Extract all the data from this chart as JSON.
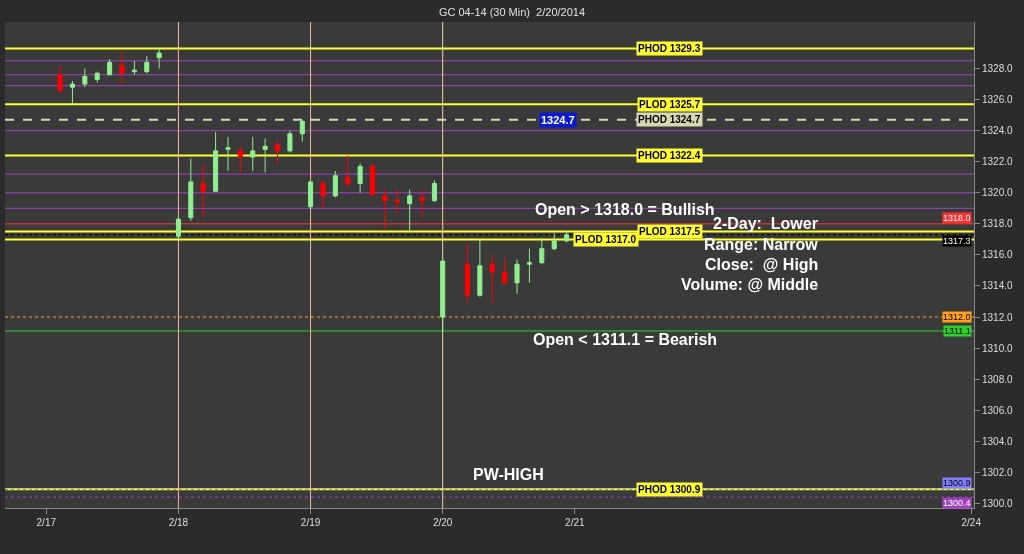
{
  "chart_data": {
    "type": "candlestick",
    "title": "GC 04-14 (30 Min)  2/20/2014",
    "x": [
      "2014-02-17T02:30",
      "2014-02-17T04:45",
      "2014-02-17T07:00",
      "2014-02-17T09:15",
      "2014-02-17T11:30",
      "2014-02-17T13:45",
      "2014-02-17T16:00",
      "2014-02-17T18:15",
      "2014-02-17T20:30",
      "2014-02-18T00:00",
      "2014-02-18T02:15",
      "2014-02-18T04:30",
      "2014-02-18T06:45",
      "2014-02-18T09:00",
      "2014-02-18T11:15",
      "2014-02-18T13:30",
      "2014-02-18T15:45",
      "2014-02-18T18:00",
      "2014-02-18T20:15",
      "2014-02-18T22:30",
      "2014-02-19T00:00",
      "2014-02-19T02:15",
      "2014-02-19T04:30",
      "2014-02-19T06:45",
      "2014-02-19T09:00",
      "2014-02-19T11:15",
      "2014-02-19T13:30",
      "2014-02-19T15:45",
      "2014-02-19T18:00",
      "2014-02-19T20:15",
      "2014-02-19T22:30",
      "2014-02-20T00:00",
      "2014-02-20T04:30",
      "2014-02-20T06:45",
      "2014-02-20T09:00",
      "2014-02-20T11:15",
      "2014-02-20T13:30",
      "2014-02-20T15:45",
      "2014-02-20T18:00",
      "2014-02-20T20:15",
      "2014-02-20T22:30"
    ],
    "ohlc": [
      [
        1327.6,
        1328.2,
        1326.4,
        1326.6
      ],
      [
        1326.8,
        1327.2,
        1325.7,
        1327.0
      ],
      [
        1327.0,
        1328.0,
        1326.8,
        1327.5
      ],
      [
        1327.3,
        1327.8,
        1327.1,
        1327.7
      ],
      [
        1327.6,
        1328.6,
        1327.6,
        1328.4
      ],
      [
        1328.2,
        1329.1,
        1327.0,
        1327.7
      ],
      [
        1327.8,
        1328.5,
        1327.6,
        1327.9
      ],
      [
        1327.8,
        1328.8,
        1327.7,
        1328.4
      ],
      [
        1328.7,
        1329.3,
        1328.0,
        1329.0
      ],
      [
        1317.2,
        1318.4,
        1317.0,
        1318.3
      ],
      [
        1318.4,
        1322.2,
        1318.2,
        1320.7
      ],
      [
        1320.6,
        1321.8,
        1318.4,
        1320.1
      ],
      [
        1320.1,
        1323.9,
        1320.1,
        1322.7
      ],
      [
        1322.8,
        1323.6,
        1321.4,
        1322.9
      ],
      [
        1322.7,
        1323.0,
        1321.3,
        1322.3
      ],
      [
        1322.3,
        1323.6,
        1321.4,
        1322.7
      ],
      [
        1322.8,
        1323.5,
        1321.3,
        1323.0
      ],
      [
        1323.1,
        1323.4,
        1321.9,
        1322.7
      ],
      [
        1322.7,
        1324.0,
        1322.6,
        1323.8
      ],
      [
        1323.8,
        1324.7,
        1323.3,
        1324.6
      ],
      [
        1319.1,
        1320.8,
        1318.9,
        1320.7
      ],
      [
        1320.6,
        1320.8,
        1319.0,
        1319.8
      ],
      [
        1319.8,
        1321.4,
        1319.7,
        1321.1
      ],
      [
        1321.0,
        1322.4,
        1320.3,
        1320.6
      ],
      [
        1320.6,
        1321.9,
        1320.0,
        1321.7
      ],
      [
        1321.7,
        1321.9,
        1319.7,
        1319.9
      ],
      [
        1319.8,
        1320.2,
        1317.6,
        1319.5
      ],
      [
        1319.5,
        1320.2,
        1318.7,
        1319.4
      ],
      [
        1319.3,
        1320.2,
        1317.5,
        1319.8
      ],
      [
        1319.7,
        1320.2,
        1318.4,
        1319.5
      ],
      [
        1319.5,
        1320.8,
        1319.4,
        1320.6
      ],
      [
        1312.0,
        1315.7,
        1311.1,
        1315.6
      ],
      [
        1315.4,
        1316.7,
        1312.9,
        1313.4
      ],
      [
        1313.4,
        1317.0,
        1313.3,
        1315.3
      ],
      [
        1315.4,
        1316.0,
        1312.9,
        1314.9
      ],
      [
        1314.9,
        1315.8,
        1314.1,
        1314.2
      ],
      [
        1314.2,
        1315.7,
        1313.5,
        1315.4
      ],
      [
        1315.4,
        1316.4,
        1314.2,
        1315.5
      ],
      [
        1315.5,
        1317.1,
        1315.4,
        1316.4
      ],
      [
        1316.4,
        1317.4,
        1316.3,
        1316.9
      ],
      [
        1316.9,
        1317.5,
        1316.8,
        1317.3
      ]
    ],
    "colors": [
      "#ff0000",
      "#90ee90",
      "#90ee90",
      "#90ee90",
      "#90ee90",
      "#ff0000",
      "#90ee90",
      "#90ee90",
      "#90ee90",
      "#90ee90",
      "#90ee90",
      "#ff0000",
      "#90ee90",
      "#90ee90",
      "#ff0000",
      "#90ee90",
      "#90ee90",
      "#ff0000",
      "#90ee90",
      "#90ee90",
      "#90ee90",
      "#ff0000",
      "#90ee90",
      "#ff0000",
      "#90ee90",
      "#ff0000",
      "#ff0000",
      "#ff0000",
      "#90ee90",
      "#ff0000",
      "#90ee90",
      "#90ee90",
      "#ff0000",
      "#90ee90",
      "#ff0000",
      "#ff0000",
      "#90ee90",
      "#90ee90",
      "#90ee90",
      "#90ee90",
      "#90ee90"
    ],
    "xlim": [
      "2014-02-16T16:30",
      "2014-02-24T00:30"
    ],
    "xticks": [
      {
        "value": "2014-02-17",
        "label": "2/17"
      },
      {
        "value": "2014-02-18",
        "label": "2/18"
      },
      {
        "value": "2014-02-19",
        "label": "2/19"
      },
      {
        "value": "2014-02-20",
        "label": "2/20"
      },
      {
        "value": "2014-02-21",
        "label": "2/21"
      },
      {
        "value": "2014-02-24",
        "label": "2/24"
      }
    ],
    "ylim": [
      1299.7,
      1331
    ],
    "yticks": [
      {
        "value": 1300,
        "label": "1300.0"
      },
      {
        "value": 1302,
        "label": "1302.0"
      },
      {
        "value": 1304,
        "label": "1304.0"
      },
      {
        "value": 1306,
        "label": "1306.0"
      },
      {
        "value": 1308,
        "label": "1308.0"
      },
      {
        "value": 1310,
        "label": "1310.0"
      },
      {
        "value": 1312,
        "label": "1312.0"
      },
      {
        "value": 1314,
        "label": "1314.0"
      },
      {
        "value": 1316,
        "label": "1316.0"
      },
      {
        "value": 1318,
        "label": "1318.0"
      },
      {
        "value": 1320,
        "label": "1320.0"
      },
      {
        "value": 1322,
        "label": "1322.0"
      },
      {
        "value": 1324,
        "label": "1324.0"
      },
      {
        "value": 1326,
        "label": "1326.0"
      },
      {
        "value": 1328,
        "label": "1328.0"
      }
    ],
    "grid": false,
    "ref_lines": [
      {
        "axis": "y",
        "value": 1329.3,
        "label": "PHOD 1329.3",
        "color": "#ffff33"
      },
      {
        "axis": "y",
        "value": 1325.7,
        "label": "PLOD 1325.7",
        "color": "#ffff33"
      },
      {
        "axis": "y",
        "value": 1324.7,
        "label": "PHOD 1324.7",
        "color": "#d8d8b0",
        "line_style": "dashed"
      },
      {
        "axis": "y",
        "value": 1322.4,
        "label": "PHOD 1322.4",
        "color": "#ffff33"
      },
      {
        "axis": "y",
        "value": 1317.5,
        "label": "PLOD 1317.5",
        "color": "#ffff33"
      },
      {
        "axis": "y",
        "value": 1317.0,
        "label": "PLOD 1317.0",
        "color": "#ffff33"
      },
      {
        "axis": "y",
        "value": 1300.9,
        "label": "PHOD 1300.9",
        "color": "#ffff33"
      },
      {
        "axis": "y",
        "value": 1328.5,
        "color": "#a040c0"
      },
      {
        "axis": "y",
        "value": 1327.6,
        "color": "#a040c0"
      },
      {
        "axis": "y",
        "value": 1326.9,
        "color": "#a040c0"
      },
      {
        "axis": "y",
        "value": 1324.0,
        "color": "#a040c0"
      },
      {
        "axis": "y",
        "value": 1321.2,
        "color": "#a040c0"
      },
      {
        "axis": "y",
        "value": 1320.0,
        "color": "#a040c0"
      },
      {
        "axis": "y",
        "value": 1319.0,
        "color": "#a040c0"
      },
      {
        "axis": "y",
        "value": 1300.4,
        "label": "1300.4",
        "color": "#a040c0",
        "line_style": "dotted"
      },
      {
        "axis": "y",
        "value": 1318.0,
        "label": "1318.0",
        "color": "#ff3030"
      },
      {
        "axis": "y",
        "value": 1312.0,
        "label": "1312.0",
        "color": "#ffa020",
        "line_style": "dotted"
      },
      {
        "axis": "y",
        "value": 1311.1,
        "label": "1311.1",
        "color": "#30d030"
      },
      {
        "axis": "y",
        "value": 1317.3,
        "label": "1317.3",
        "color": "#000000",
        "line_style": "dotted"
      },
      {
        "axis": "y",
        "value": 1300.9,
        "label": "1300.9",
        "color": "#8080ff",
        "line_style": "dotted"
      },
      {
        "axis": "x",
        "value": "2014-02-18",
        "color": "#f0b8a0"
      },
      {
        "axis": "x",
        "value": "2014-02-19",
        "color": "#f0b8a0"
      },
      {
        "axis": "x",
        "value": "2014-02-20",
        "color": "#f0d0a0"
      }
    ],
    "annotations": [
      "Open > 1318.0 = Bullish",
      "Open < 1311.1 = Bearish",
      "2-Day:  Lower",
      "Range: Narrow",
      "Close:  @ High",
      "Volume: @ Middle",
      {
        "text": "PW-HIGH",
        "x": "2014-02-20T12:00",
        "y": 1300.9
      },
      {
        "text": "1324.7",
        "x": "2014-02-20T21:00",
        "y": 1324.7
      }
    ]
  }
}
